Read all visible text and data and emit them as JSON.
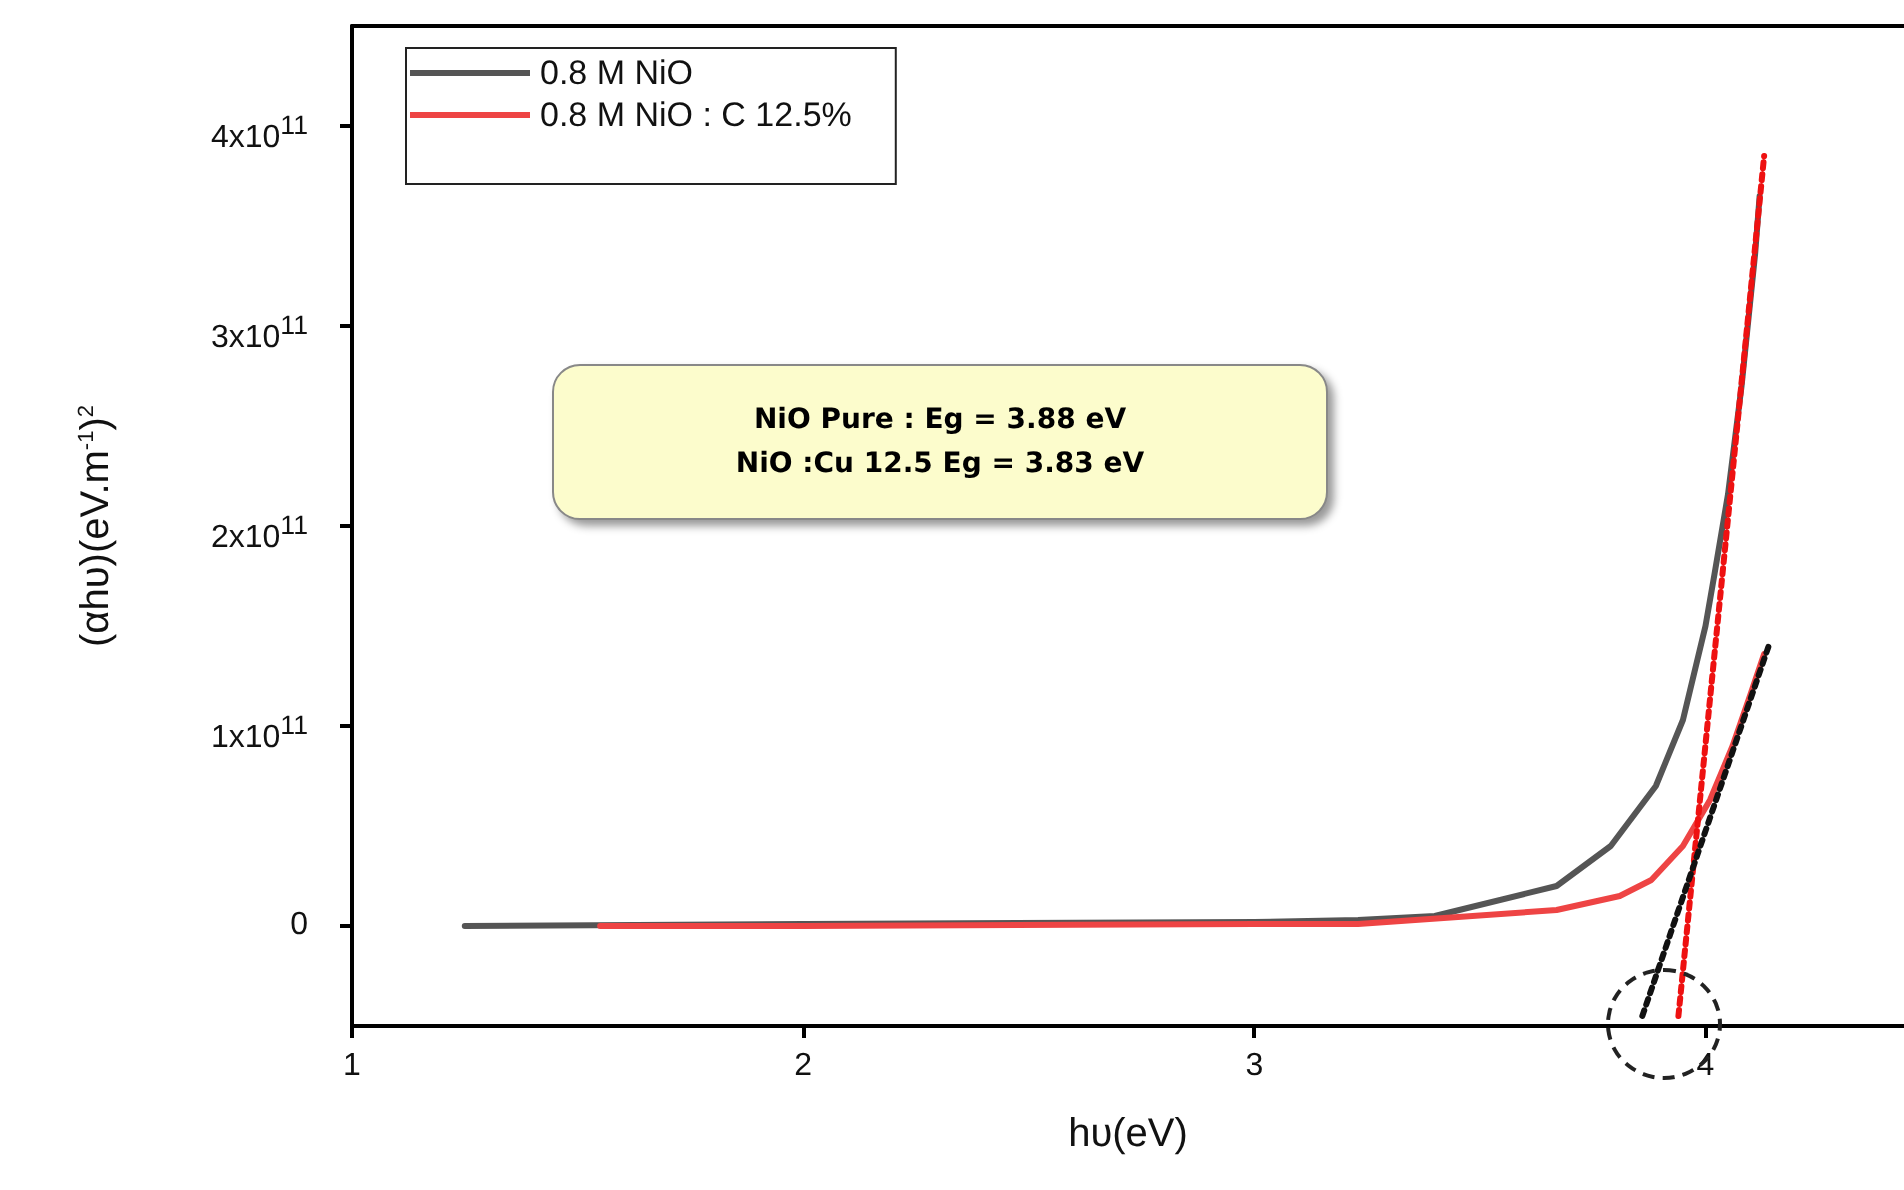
{
  "chart_data": {
    "type": "line",
    "xlabel": "hυ(eV)",
    "ylabel": "(αhυ)(eV.m$^{-1}$)$^{2}$",
    "xlim": [
      1,
      4.44
    ],
    "xticks": [
      1,
      2,
      3,
      4
    ],
    "ylim": [
      -50000000000,
      450000000000
    ],
    "yticks": [
      {
        "value": 0,
        "label": "0"
      },
      {
        "value": 100000000000,
        "label": "1x10$^{11}$"
      },
      {
        "value": 200000000000,
        "label": "2x10$^{11}$"
      },
      {
        "value": 300000000000,
        "label": "3x10$^{11}$"
      },
      {
        "value": 400000000000,
        "label": "4x10$^{11}$"
      }
    ],
    "legend": "top left",
    "grid": false,
    "marker": "none",
    "annotations": [
      "NiO Pure : Eg = 3.88 eV",
      "NiO :Cu 12.5 Eg = 3.83 eV"
    ],
    "series": [
      {
        "name": "0.8 M NiO",
        "color": "#555555",
        "x": [
          1.25,
          2.0,
          3.0,
          3.23,
          3.4,
          3.67,
          3.79,
          3.89,
          3.95,
          4.0,
          4.02,
          4.05,
          4.08,
          4.11,
          4.12
        ],
        "values": [
          0,
          1000000000,
          2000000000,
          3000000000,
          5000000000,
          20000000000,
          40000000000,
          70000000000,
          103000000000,
          150000000000,
          176000000000,
          216000000000,
          270000000000,
          336000000000,
          365000000000
        ]
      },
      {
        "name": "0.8 M NiO : C 12.5%",
        "color": "#ee4444",
        "x": [
          1.55,
          2.0,
          3.0,
          3.23,
          3.67,
          3.81,
          3.88,
          3.95,
          4.01,
          4.06,
          4.1,
          4.13
        ],
        "values": [
          0,
          0,
          1000000000,
          1000000000,
          8000000000,
          15000000000,
          23000000000,
          40000000000,
          63000000000,
          90000000000,
          116000000000,
          136000000000
        ]
      },
      {
        "type": "line",
        "color": "#ee1111",
        "line_style": "dotted",
        "x": [
          3.94,
          4.13
        ],
        "values": [
          -45000000000,
          385000000000
        ]
      },
      {
        "type": "line",
        "color": "#111111",
        "line_style": "dotted",
        "x": [
          3.86,
          4.14
        ],
        "values": [
          -45000000000,
          140000000000
        ]
      }
    ]
  }
}
